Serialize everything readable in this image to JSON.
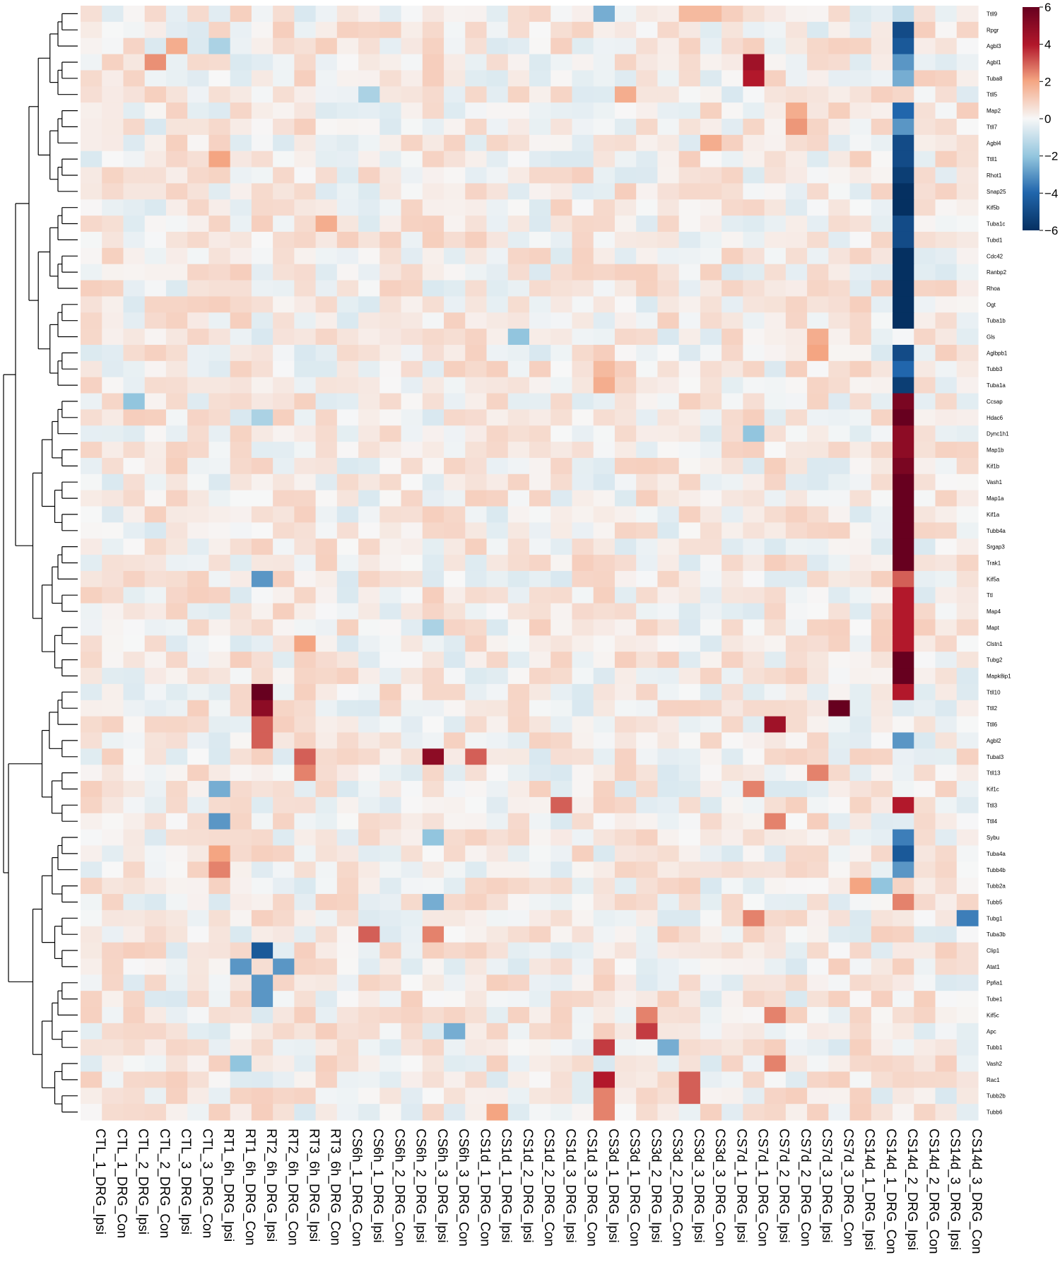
{
  "chart_data": {
    "type": "heatmap",
    "title": "",
    "colormap": {
      "low": "#053061",
      "mid": "#f7f7f7",
      "high": "#67001f",
      "min": -6,
      "max": 6
    },
    "legend": {
      "position": "top-right",
      "ticks": [
        6,
        4,
        2,
        0,
        -2,
        -4,
        -6
      ],
      "tick_labels": [
        "6",
        "4",
        "2",
        "0",
        "−2",
        "−4",
        "−6"
      ]
    },
    "columns": [
      "CTL_1_DRG_Ipsi",
      "CTL_1_DRG_Con",
      "CTL_2_DRG_Ipsi",
      "CTL_2_DRG_Con",
      "CTL_3_DRG_Ipsi",
      "CTL_3_DRG_Con",
      "RT1_6h_DRG_Ipsi",
      "RT1_6h_DRG_Con",
      "RT2_6h_DRG_Ipsi",
      "RT2_6h_DRG_Con",
      "RT3_6h_DRG_Ipsi",
      "RT3_6h_DRG_Con",
      "CS6h_1_DRG_Con",
      "CS6h_1_DRG_Ipsi",
      "CS6h_2_DRG_Con",
      "CS6h_2_DRG_Ipsi",
      "CS6h_3_DRG_Ipsi",
      "CS6h_3_DRG_Con",
      "CS1d_1_DRG_Con",
      "CS1d_1_DRG_Ipsi",
      "CS1d_2_DRG_Ipsi",
      "CS1d_2_DRG_Con",
      "CS1d_3_DRG_Ipsi",
      "CS1d_3_DRG_Con",
      "CS3d_1_DRG_Ipsi",
      "CS3d_1_DRG_Con",
      "CS3d_2_DRG_Ipsi",
      "CS3d_2_DRG_Con",
      "CS3d_3_DRG_Ipsi",
      "CS3d_3_DRG_Con",
      "CS7d_1_DRG_Ipsi",
      "CS7d_1_DRG_Con",
      "CS7d_2_DRG_Ipsi",
      "CS7d_2_DRG_Con",
      "CS7d_3_DRG_Ipsi",
      "CS7d_3_DRG_Con",
      "CS14d_1_DRG_Ipsi",
      "CS14d_1_DRG_Con",
      "CS14d_2_DRG_Ipsi",
      "CS14d_2_DRG_Con",
      "CS14d_3_DRG_Ipsi",
      "CS14d_3_DRG_Con"
    ],
    "rows": [
      "Ttll9",
      "Rpgr",
      "Agbl3",
      "Agbl1",
      "Tuba8",
      "Ttll5",
      "Map2",
      "Ttll7",
      "Agbl4",
      "Ttll1",
      "Rhot1",
      "Snap25",
      "Kif5b",
      "Tuba1c",
      "Tubd1",
      "Cdc42",
      "Ranbp2",
      "Rhoa",
      "Ogt",
      "Tuba1b",
      "Gls",
      "Aglbpb1",
      "Tubb3",
      "Tuba1a",
      "Ccsap",
      "Hdac6",
      "Dync1h1",
      "Map1b",
      "Kif1b",
      "Vash1",
      "Map1a",
      "Kif1a",
      "Tubb4a",
      "Srgap3",
      "Trak1",
      "Kif5a",
      "Ttl",
      "Map4",
      "Mapt",
      "Clstn1",
      "Tubg2",
      "Mapk8ip1",
      "Ttll10",
      "Ttll2",
      "Ttll6",
      "Agbl2",
      "Tubal3",
      "Ttll13",
      "Kif1c",
      "Ttll3",
      "Ttll4",
      "Sybu",
      "Tuba4a",
      "Tubb4b",
      "Tubb2a",
      "Tubb5",
      "Tubg1",
      "Tuba3b",
      "Clip1",
      "Atat1",
      "Ppfia1",
      "Tube1",
      "Kif5c",
      "Apc",
      "Tubb1",
      "Vash2",
      "Rac1",
      "Tubb2b",
      "Tubb6"
    ],
    "default_value": 0.2,
    "row_values": {
      "Ttll9": {
        "CS3d_1_DRG_Ipsi": -2.5,
        "CS3d_3_DRG_Ipsi": 1.5,
        "CS3d_3_DRG_Con": 1.5,
        "CS14d_2_DRG_Ipsi": -1.0
      },
      "Rpgr": {
        "CS14d_2_DRG_Ipsi": -5.0,
        "CS6h_2_DRG_Con": 0.9
      },
      "Agbl3": {
        "CTL_3_DRG_Ipsi": 1.8,
        "RT1_6h_DRG_Ipsi": -1.5,
        "CS14d_2_DRG_Ipsi": -4.5
      },
      "Agbl1": {
        "CTL_2_DRG_Con": 2.3,
        "CS7d_1_DRG_Con": 4.5,
        "CS14d_2_DRG_Ipsi": -3.0
      },
      "Tuba8": {
        "CS7d_1_DRG_Con": 4.0,
        "CS14d_2_DRG_Ipsi": -2.5
      },
      "Ttll5": {
        "CS6h_1_DRG_Ipsi": -1.5,
        "CS3d_1_DRG_Con": 1.8
      },
      "Map2": {
        "CS7d_2_DRG_Con": 1.8,
        "CS14d_2_DRG_Ipsi": -4.0
      },
      "Ttll7": {
        "CS7d_2_DRG_Con": 2.2,
        "CS14d_2_DRG_Ipsi": -3.0
      },
      "Agbl4": {
        "CS3d_3_DRG_Con": 1.8,
        "CS14d_2_DRG_Ipsi": -5.0
      },
      "Ttll1": {
        "RT1_6h_DRG_Ipsi": 2.0,
        "CS14d_2_DRG_Ipsi": -5.0
      },
      "Rhot1": {
        "CS14d_2_DRG_Ipsi": -5.5
      },
      "Snap25": {
        "CS14d_2_DRG_Ipsi": -6.0
      },
      "Kif5b": {
        "CS14d_2_DRG_Ipsi": -6.0
      },
      "Tuba1c": {
        "RT3_6h_DRG_Con": 1.8,
        "CS14d_2_DRG_Ipsi": -5.0
      },
      "Tubd1": {
        "CS14d_2_DRG_Ipsi": -5.0
      },
      "Cdc42": {
        "CS14d_2_DRG_Ipsi": -6.0
      },
      "Ranbp2": {
        "CS14d_2_DRG_Ipsi": -6.0
      },
      "Rhoa": {
        "CS14d_2_DRG_Ipsi": -6.0
      },
      "Ogt": {
        "CS14d_2_DRG_Ipsi": -6.0
      },
      "Tuba1b": {
        "CS14d_2_DRG_Ipsi": -6.0
      },
      "Gls": {
        "CS1d_2_DRG_Ipsi": -2.0,
        "CS7d_3_DRG_Ipsi": 1.8
      },
      "Aglbpb1": {
        "CS7d_3_DRG_Ipsi": 2.0,
        "CS14d_2_DRG_Ipsi": -5.0
      },
      "Tubb3": {
        "CS3d_1_DRG_Ipsi": 1.5,
        "CS14d_2_DRG_Ipsi": -4.0
      },
      "Tuba1a": {
        "CS3d_1_DRG_Ipsi": 1.8,
        "CS14d_2_DRG_Ipsi": -5.5
      },
      "Ccsap": {
        "CTL_2_DRG_Ipsi": -2.0,
        "CS14d_2_DRG_Ipsi": 5.5
      },
      "Hdac6": {
        "RT2_6h_DRG_Ipsi": -1.5,
        "CS14d_2_DRG_Ipsi": 6.0
      },
      "Dync1h1": {
        "CS7d_1_DRG_Con": -2.0,
        "CS14d_2_DRG_Ipsi": 5.0
      },
      "Map1b": {
        "CS14d_2_DRG_Ipsi": 5.0
      },
      "Kif1b": {
        "CS14d_2_DRG_Ipsi": 5.5
      },
      "Vash1": {
        "CS14d_2_DRG_Ipsi": 6.0
      },
      "Map1a": {
        "CS14d_2_DRG_Ipsi": 6.0
      },
      "Kif1a": {
        "CS14d_2_DRG_Ipsi": 6.0
      },
      "Tubb4a": {
        "CS14d_2_DRG_Ipsi": 6.0
      },
      "Srgap3": {
        "CS14d_2_DRG_Ipsi": 6.0
      },
      "Trak1": {
        "CS14d_2_DRG_Ipsi": 6.0
      },
      "Kif5a": {
        "RT2_6h_DRG_Ipsi": -3.0,
        "CS14d_2_DRG_Ipsi": 3.0
      },
      "Ttl": {
        "CS14d_2_DRG_Ipsi": 4.0
      },
      "Map4": {
        "CS14d_2_DRG_Ipsi": 4.0
      },
      "Mapt": {
        "CS6h_3_DRG_Ipsi": -1.5,
        "CS14d_2_DRG_Ipsi": 4.0
      },
      "Clstn1": {
        "RT3_6h_DRG_Ipsi": 2.0,
        "CS14d_2_DRG_Ipsi": 4.0
      },
      "Tubg2": {
        "CS14d_2_DRG_Ipsi": 6.0
      },
      "Mapk8ip1": {
        "CS14d_2_DRG_Ipsi": 6.0
      },
      "Ttll10": {
        "RT2_6h_DRG_Ipsi": 6.0,
        "CS14d_2_DRG_Ipsi": 4.0
      },
      "Ttll2": {
        "RT2_6h_DRG_Ipsi": 5.0,
        "CS7d_3_DRG_Con": 6.0
      },
      "Ttll6": {
        "RT2_6h_DRG_Ipsi": 3.0,
        "CS7d_2_DRG_Ipsi": 4.5
      },
      "Agbl2": {
        "RT2_6h_DRG_Ipsi": 3.0,
        "CS14d_2_DRG_Ipsi": -3.0
      },
      "Tubal3": {
        "RT3_6h_DRG_Ipsi": 3.0,
        "CS6h_3_DRG_Ipsi": 5.0,
        "CS1d_1_DRG_Con": 3.0
      },
      "Ttll13": {
        "RT3_6h_DRG_Ipsi": 2.5,
        "CS7d_3_DRG_Ipsi": 2.5
      },
      "Kif1c": {
        "RT1_6h_DRG_Ipsi": -2.5,
        "CS7d_1_DRG_Con": 2.5
      },
      "Ttll3": {
        "CS1d_3_DRG_Ipsi": 3.0,
        "CS14d_2_DRG_Ipsi": 4.0
      },
      "Ttll4": {
        "RT1_6h_DRG_Ipsi": -3.0,
        "CS7d_2_DRG_Ipsi": 2.5
      },
      "Sybu": {
        "CS6h_3_DRG_Ipsi": -2.0,
        "CS14d_2_DRG_Ipsi": -3.5
      },
      "Tuba4a": {
        "RT1_6h_DRG_Ipsi": 2.0,
        "CS14d_2_DRG_Ipsi": -4.5
      },
      "Tubb4b": {
        "RT1_6h_DRG_Ipsi": 2.5,
        "CS14d_2_DRG_Ipsi": -3.0
      },
      "Tubb2a": {
        "CS14d_1_DRG_Ipsi": 2.0,
        "CS14d_1_DRG_Con": -2.0
      },
      "Tubb5": {
        "CS6h_3_DRG_Ipsi": -2.5,
        "CS14d_2_DRG_Ipsi": 2.5
      },
      "Tubg1": {
        "CS7d_1_DRG_Con": 2.5,
        "CS14d_3_DRG_Con": -3.5
      },
      "Tuba3b": {
        "CS6h_1_DRG_Ipsi": 3.0,
        "CS6h_3_DRG_Ipsi": 2.5
      },
      "Clip1": {
        "RT2_6h_DRG_Ipsi": -4.5
      },
      "Atat1": {
        "RT1_6h_DRG_Con": -3.0,
        "RT2_6h_DRG_Con": -3.0
      },
      "Ppfia1": {
        "RT2_6h_DRG_Ipsi": -3.0
      },
      "Tube1": {
        "RT2_6h_DRG_Ipsi": -3.0
      },
      "Kif5c": {
        "CS3d_2_DRG_Ipsi": 2.5,
        "CS7d_2_DRG_Ipsi": 2.5
      },
      "Apc": {
        "CS3d_2_DRG_Ipsi": 3.5,
        "CS6h_3_DRG_Con": -2.5
      },
      "Tubb1": {
        "CS3d_1_DRG_Ipsi": 3.5,
        "CS3d_2_DRG_Con": -2.5
      },
      "Vash2": {
        "RT1_6h_DRG_Con": -2.0,
        "CS7d_2_DRG_Ipsi": 2.5
      },
      "Rac1": {
        "CS3d_1_DRG_Ipsi": 4.0,
        "CS3d_3_DRG_Ipsi": 3.0
      },
      "Tubb2b": {
        "CS3d_1_DRG_Ipsi": 2.5,
        "CS3d_3_DRG_Ipsi": 3.0
      },
      "Tubb6": {
        "CS3d_1_DRG_Ipsi": 2.5,
        "CS1d_1_DRG_Ipsi": 2.0
      }
    }
  }
}
